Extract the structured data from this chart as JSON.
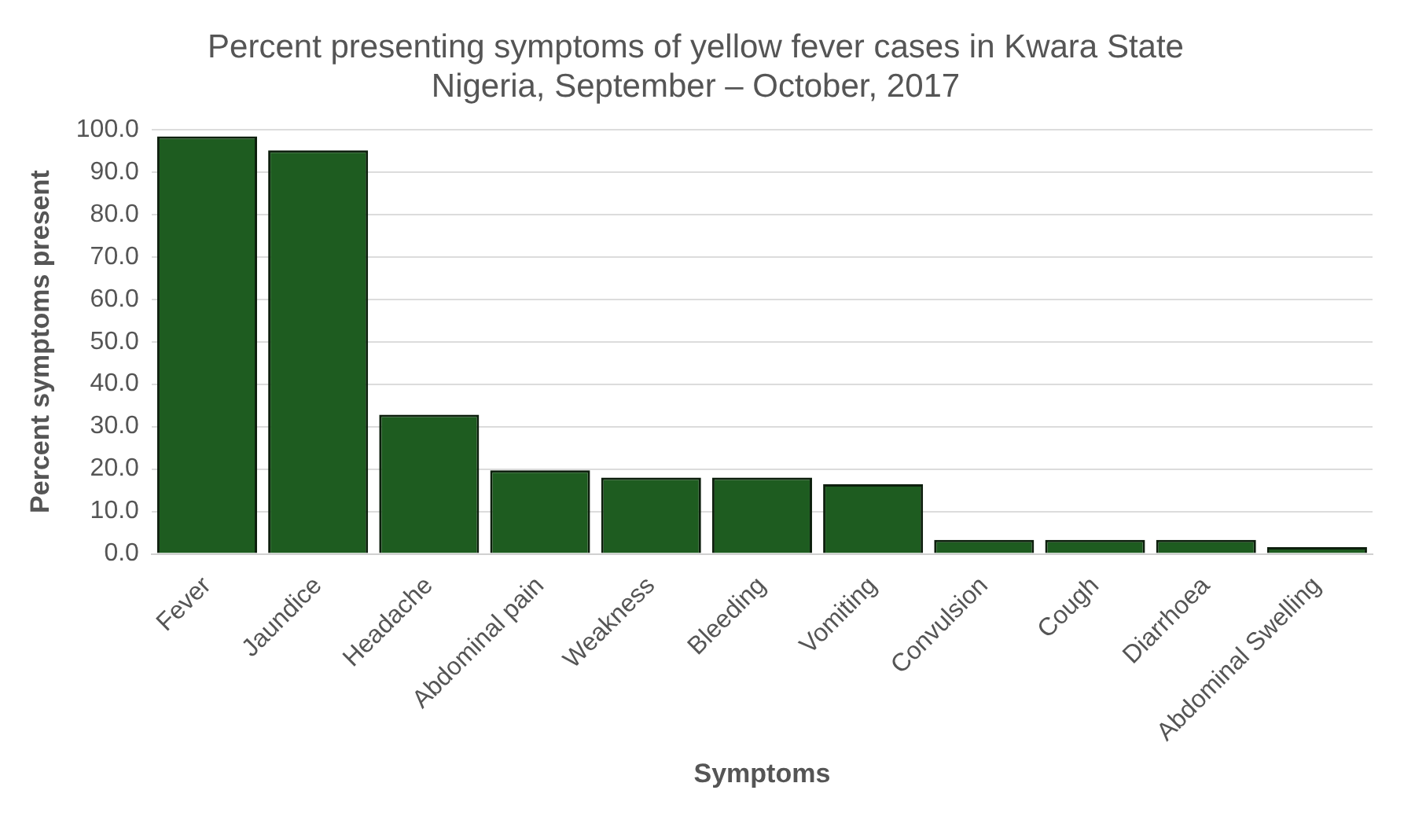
{
  "chart_data": {
    "type": "bar",
    "title": [
      "Percent presenting symptoms of yellow fever cases in Kwara State",
      "Nigeria, September – October, 2017"
    ],
    "xlabel": "Symptoms",
    "ylabel": "Percent symptoms present",
    "categories": [
      "Fever",
      "Jaundice",
      "Headache",
      "Abdominal pain",
      "Weakness",
      "Bleeding",
      "Vomiting",
      "Convulsion",
      "Cough",
      "Diarrhoea",
      "Abdominal Swelling"
    ],
    "values": [
      98.4,
      95.1,
      32.8,
      19.7,
      18.0,
      18.0,
      16.4,
      3.3,
      3.3,
      3.3,
      1.6
    ],
    "color": "#1e5c20",
    "ylim": [
      0,
      100
    ],
    "yticks": [
      {
        "value": 0,
        "label": "0.0"
      },
      {
        "value": 10,
        "label": "10.0"
      },
      {
        "value": 20,
        "label": "20.0"
      },
      {
        "value": 30,
        "label": "30.0"
      },
      {
        "value": 40,
        "label": "40.0"
      },
      {
        "value": 50,
        "label": "50.0"
      },
      {
        "value": 60,
        "label": "60.0"
      },
      {
        "value": 70,
        "label": "70.0"
      },
      {
        "value": 80,
        "label": "80.0"
      },
      {
        "value": 90,
        "label": "90.0"
      },
      {
        "value": 100,
        "label": "100.0"
      }
    ],
    "grid": "y",
    "legend": false
  }
}
